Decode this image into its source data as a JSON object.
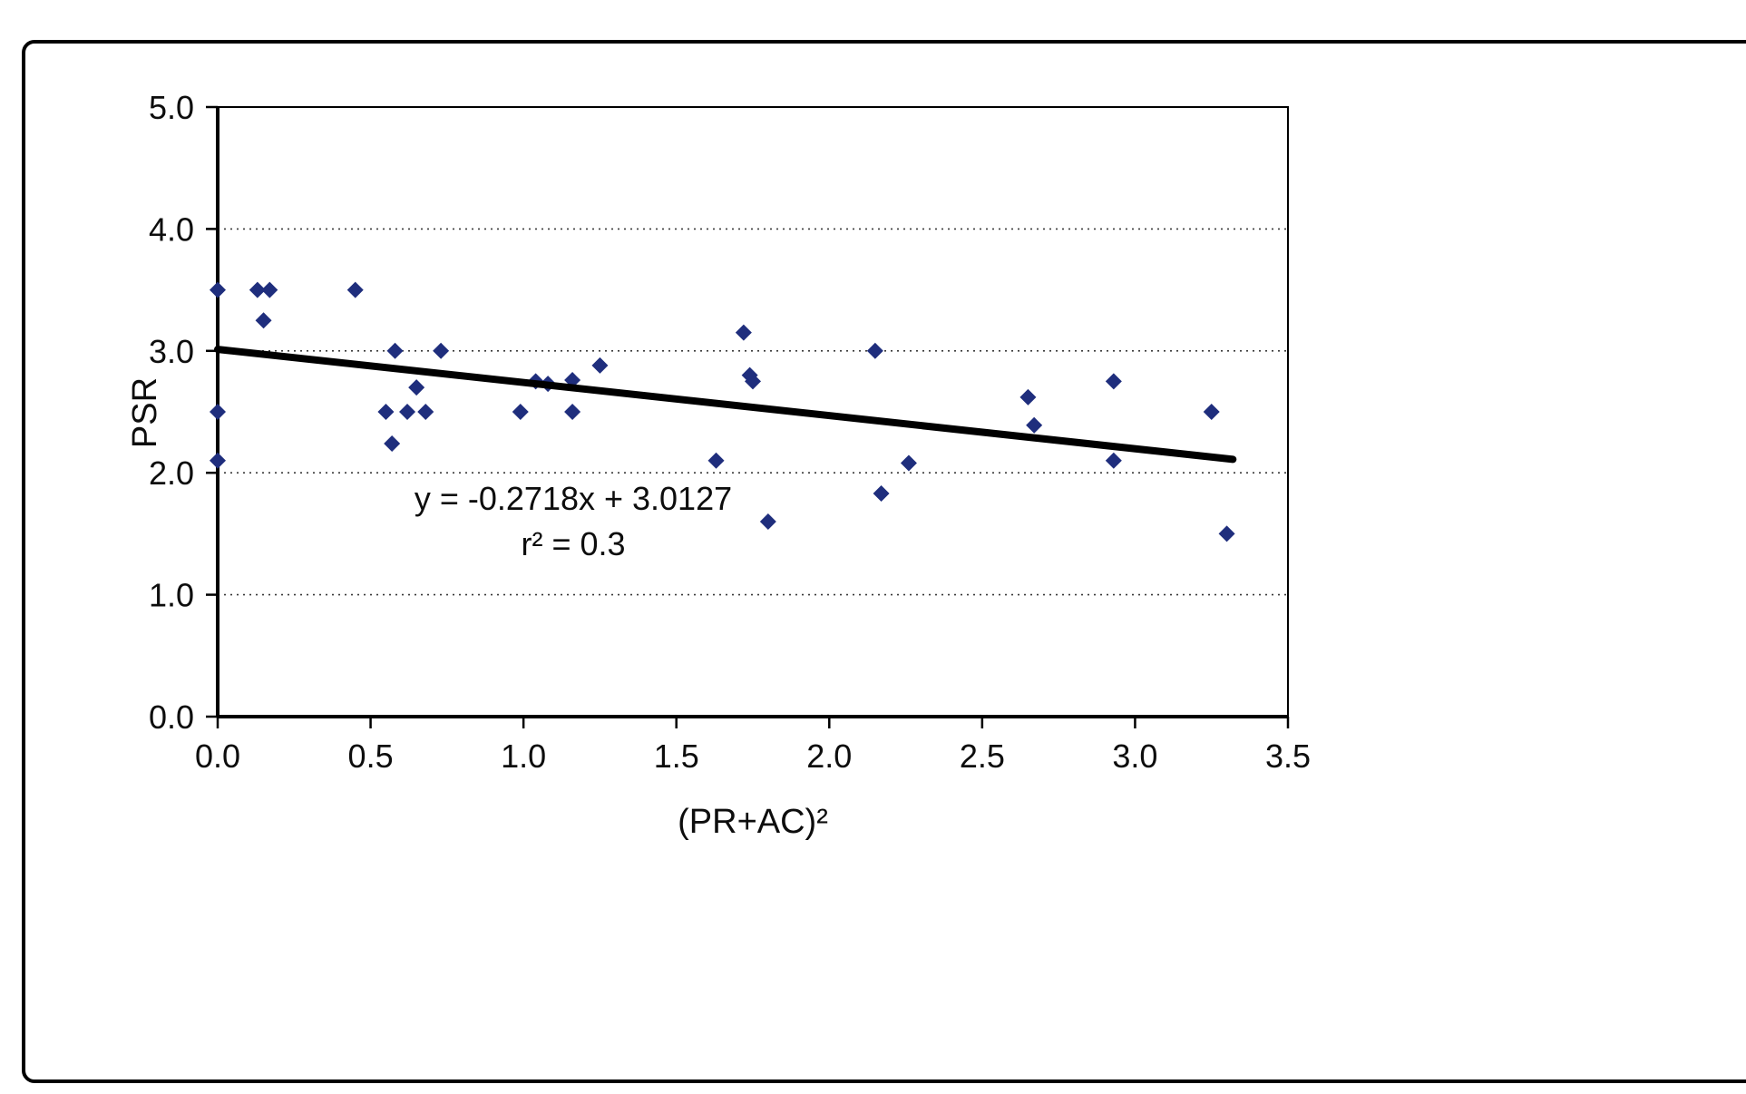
{
  "chart_data": {
    "type": "scatter",
    "title": "",
    "xlabel": "(PR+AC)²",
    "ylabel": "PSR",
    "xlim": [
      0.0,
      3.5
    ],
    "ylim": [
      0.0,
      5.0
    ],
    "xticks": [
      0.0,
      0.5,
      1.0,
      1.5,
      2.0,
      2.5,
      3.0,
      3.5
    ],
    "yticks": [
      0.0,
      1.0,
      2.0,
      3.0,
      4.0,
      5.0
    ],
    "grid": "horizontal-dotted",
    "legend": "none",
    "marker": "diamond",
    "marker_color": "#1f2e7d",
    "points": [
      [
        0.0,
        3.5
      ],
      [
        0.0,
        2.5
      ],
      [
        0.0,
        2.1
      ],
      [
        0.13,
        3.5
      ],
      [
        0.17,
        3.5
      ],
      [
        0.15,
        3.25
      ],
      [
        0.45,
        3.5
      ],
      [
        0.58,
        3.0
      ],
      [
        0.55,
        2.5
      ],
      [
        0.62,
        2.5
      ],
      [
        0.57,
        2.24
      ],
      [
        0.65,
        2.7
      ],
      [
        0.68,
        2.5
      ],
      [
        0.73,
        3.0
      ],
      [
        0.99,
        2.5
      ],
      [
        1.04,
        2.75
      ],
      [
        1.08,
        2.73
      ],
      [
        1.16,
        2.76
      ],
      [
        1.16,
        2.5
      ],
      [
        1.25,
        2.88
      ],
      [
        1.63,
        2.1
      ],
      [
        1.72,
        3.15
      ],
      [
        1.74,
        2.8
      ],
      [
        1.75,
        2.75
      ],
      [
        1.8,
        1.6
      ],
      [
        2.15,
        3.0
      ],
      [
        2.17,
        1.83
      ],
      [
        2.26,
        2.08
      ],
      [
        2.65,
        2.62
      ],
      [
        2.67,
        2.39
      ],
      [
        2.93,
        2.75
      ],
      [
        2.93,
        2.1
      ],
      [
        3.25,
        2.5
      ],
      [
        3.3,
        1.5
      ]
    ],
    "trendline": {
      "slope": -0.2718,
      "intercept": 3.0127,
      "x_start": 0.0,
      "x_end": 3.32,
      "equation": "y = -0.2718x + 3.0127",
      "r_squared": "r² = 0.3",
      "color": "#000000"
    }
  }
}
